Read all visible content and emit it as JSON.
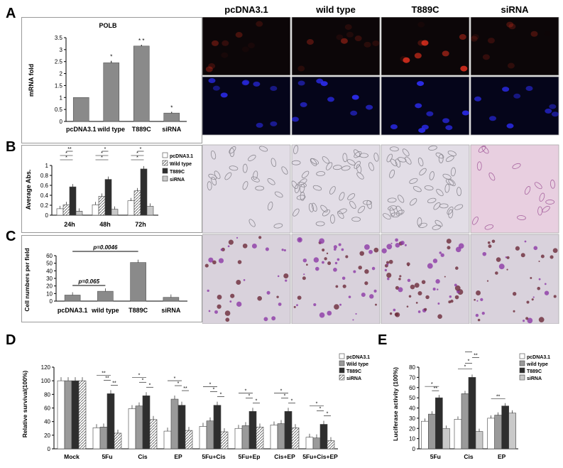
{
  "panels": {
    "A": "A",
    "B": "B",
    "C": "C",
    "D": "D",
    "E": "E"
  },
  "image_columns": [
    "pcDNA3.1",
    "wild type",
    "T889C",
    "siRNA"
  ],
  "chart_data": [
    {
      "id": "A",
      "type": "bar",
      "title": "POLB",
      "ylabel": "mRNA fold",
      "categories": [
        "pcDNA3.1",
        "wild type",
        "T889C",
        "siRNA"
      ],
      "values": [
        1,
        2.45,
        3.15,
        0.35
      ],
      "errors": [
        0,
        0.08,
        0.05,
        0.05
      ],
      "sig": [
        "",
        "*",
        "* *",
        "*"
      ],
      "ylim": [
        0,
        3.5
      ],
      "yticks": [
        "0",
        "0.5",
        "1",
        "1.5",
        "2",
        "2.5",
        "3",
        "3.5"
      ]
    },
    {
      "id": "B",
      "type": "bar",
      "ylabel": "Average Abs.",
      "categories": [
        "24h",
        "48h",
        "72h"
      ],
      "series": [
        {
          "name": "pcDNA3.1",
          "values": [
            0.13,
            0.21,
            0.29
          ]
        },
        {
          "name": "Wild type",
          "values": [
            0.21,
            0.38,
            0.49
          ]
        },
        {
          "name": "T889C",
          "values": [
            0.57,
            0.72,
            0.93
          ]
        },
        {
          "name": "siRNA",
          "values": [
            0.08,
            0.12,
            0.18
          ]
        }
      ],
      "ylim": [
        0,
        1
      ],
      "yticks": [
        "0",
        "0.2",
        "0.4",
        "0.6",
        "0.8",
        "1"
      ],
      "sig_labels": [
        "*",
        "*",
        "**",
        "*",
        "*",
        "*",
        "*",
        "*",
        "*"
      ]
    },
    {
      "id": "C",
      "type": "bar",
      "ylabel": "Cell numbers per field",
      "categories": [
        "pcDNA3.1",
        "wild type",
        "T889C",
        "siRNA"
      ],
      "values": [
        8,
        13,
        51,
        5
      ],
      "ylim": [
        0,
        60
      ],
      "yticks": [
        "0",
        "10",
        "20",
        "30",
        "40",
        "50",
        "60"
      ],
      "annotations": [
        "p=0.065",
        "p=0.0046"
      ]
    },
    {
      "id": "D",
      "type": "bar",
      "ylabel": "Relative survival(100%)",
      "categories": [
        "Mock",
        "5Fu",
        "Cis",
        "EP",
        "5Fu+Cis",
        "5Fu+Ep",
        "Cis+EP",
        "5Fu+Cis+EP"
      ],
      "series": [
        {
          "name": "pcDNA3.1",
          "values": [
            100,
            31,
            59,
            26,
            33,
            30,
            35,
            17
          ]
        },
        {
          "name": "Wild type",
          "values": [
            100,
            32,
            63,
            73,
            41,
            34,
            37,
            16
          ]
        },
        {
          "name": "T889C",
          "values": [
            100,
            81,
            78,
            64,
            64,
            55,
            55,
            36
          ]
        },
        {
          "name": "siRNA",
          "values": [
            100,
            23,
            43,
            27,
            25,
            32,
            31,
            12
          ]
        }
      ],
      "ylim": [
        0,
        120
      ],
      "yticks": [
        "0",
        "20",
        "40",
        "60",
        "80",
        "100",
        "120"
      ],
      "sig_labels": [
        "**",
        "**",
        "**",
        "*",
        "*",
        "*",
        "*",
        "*",
        "**",
        "*",
        "*",
        "*",
        "*",
        "*",
        "*",
        "*",
        "*",
        "*",
        "*",
        "*",
        "*"
      ]
    },
    {
      "id": "E",
      "type": "bar",
      "ylabel": "Luciferase activity (100%)",
      "categories": [
        "5Fu",
        "Cis",
        "EP"
      ],
      "series": [
        {
          "name": "pcDNA3.1",
          "values": [
            27,
            29,
            30
          ]
        },
        {
          "name": "wild type",
          "values": [
            34,
            54,
            33
          ]
        },
        {
          "name": "T889C",
          "values": [
            50,
            70,
            42
          ]
        },
        {
          "name": "siRNA",
          "values": [
            20,
            17,
            35
          ]
        }
      ],
      "ylim": [
        0,
        80
      ],
      "yticks": [
        "0",
        "10",
        "20",
        "30",
        "40",
        "50",
        "60",
        "70",
        "80"
      ],
      "sig_labels": [
        "*",
        "**",
        "*",
        "**",
        "*",
        "*",
        "**",
        "*"
      ]
    }
  ],
  "colors": {
    "pcDNA3.1": "#ffffff",
    "wild_type": "#9a9a9a",
    "T889C": "#2e2e2e",
    "siRNA": "#d2d2d2",
    "single": "#8a8a8a",
    "red_stain": "#e0301e",
    "blue_stain": "#2a2ae6",
    "pink_bg": "#e8cfe0",
    "purple_stain": "#8c3aa6"
  }
}
